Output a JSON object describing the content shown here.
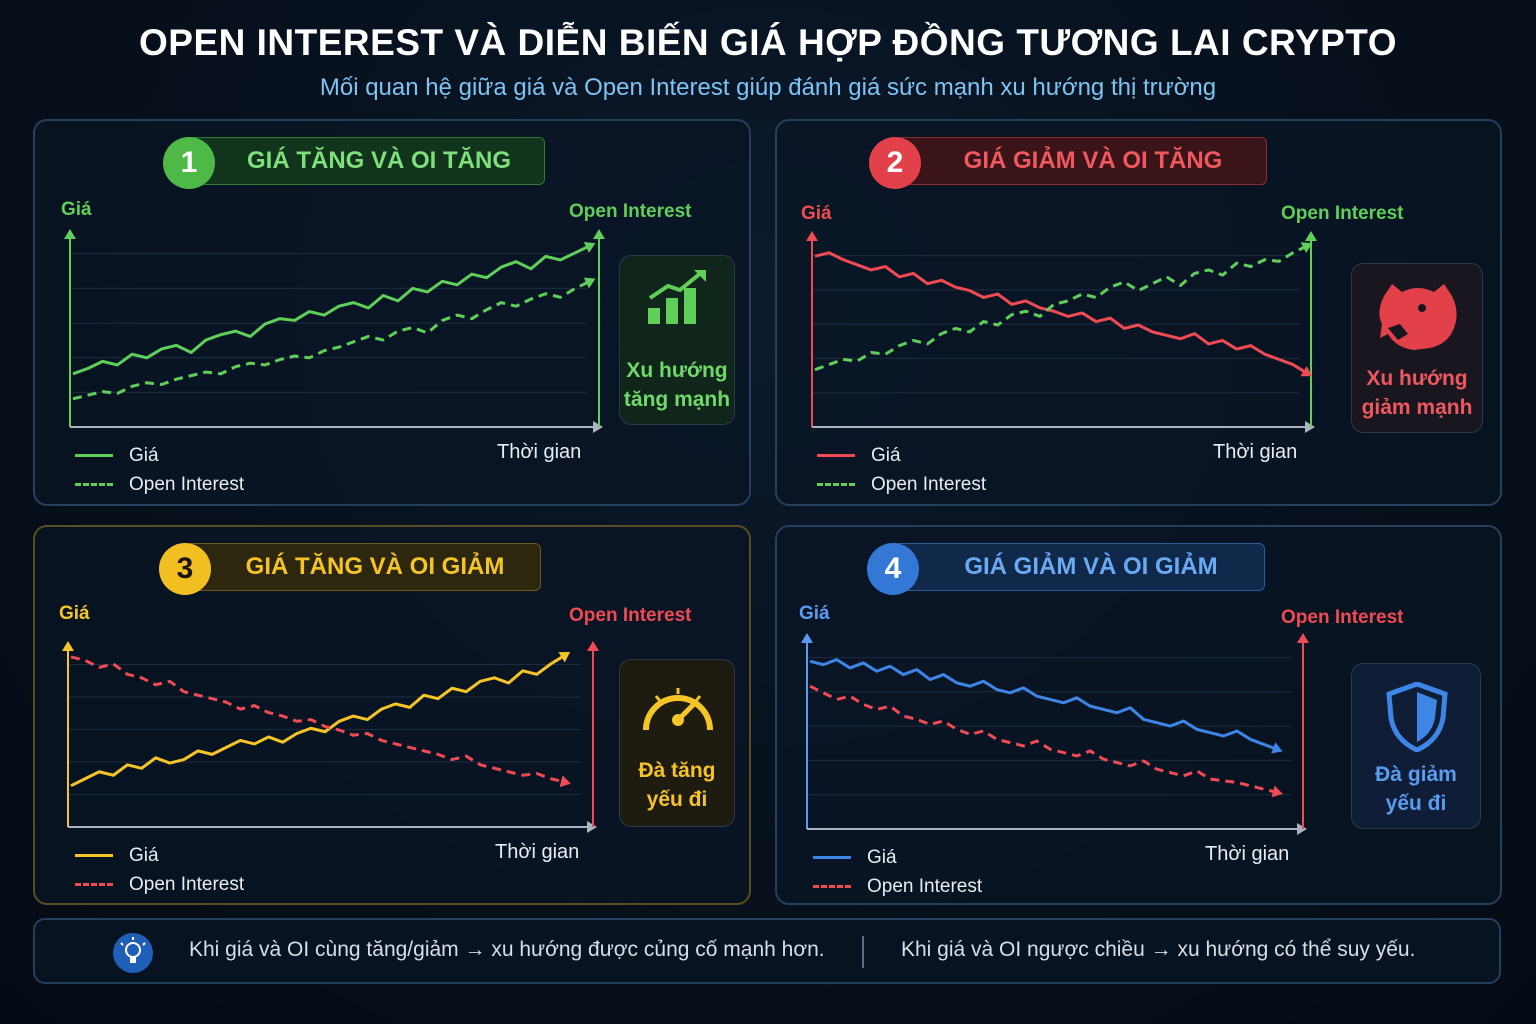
{
  "title": "OPEN INTEREST VÀ DIỄN BIẾN GIÁ HỢP ĐỒNG TƯƠNG LAI CRYPTO",
  "subtitle": "Mối quan hệ giữa giá và Open Interest giúp đánh giá sức mạnh xu hướng thị trường",
  "colors": {
    "green": "#5fcf5a",
    "red": "#f04b53",
    "yellow": "#f5c427",
    "blue": "#3d86e6"
  },
  "chart_data": [
    {
      "type": "line",
      "number": "1",
      "heading": "GIÁ TĂNG VÀ OI TĂNG",
      "ylabel": "Giá",
      "y2label": "Open Interest",
      "xlabel": "Thời gian",
      "series": [
        {
          "name": "Giá",
          "style": "solid",
          "color": "#5fcf5a",
          "values": [
            22,
            25,
            29,
            27,
            33,
            31,
            36,
            38,
            34,
            41,
            44,
            46,
            43,
            50,
            53,
            52,
            57,
            55,
            60,
            62,
            59,
            66,
            63,
            70,
            68,
            74,
            72,
            78,
            76,
            82,
            85,
            81,
            88,
            86,
            90,
            94
          ]
        },
        {
          "name": "Open Interest",
          "style": "dashed",
          "color": "#5fcf5a",
          "values": [
            8,
            10,
            12,
            11,
            15,
            17,
            16,
            19,
            21,
            23,
            22,
            26,
            28,
            27,
            30,
            32,
            31,
            35,
            37,
            40,
            43,
            41,
            46,
            48,
            45,
            52,
            55,
            53,
            58,
            62,
            60,
            64,
            67,
            65,
            70,
            74
          ]
        }
      ],
      "insight": [
        "Xu hướng",
        "tăng mạnh"
      ],
      "icon": "bar-chart-up-icon"
    },
    {
      "type": "line",
      "number": "2",
      "heading": "GIÁ GIẢM VÀ OI TĂNG",
      "ylabel": "Giá",
      "y2label": "Open Interest",
      "xlabel": "Thời gian",
      "series": [
        {
          "name": "Giá",
          "style": "solid",
          "color": "#f04b53",
          "values": [
            90,
            92,
            88,
            85,
            82,
            84,
            78,
            80,
            74,
            76,
            72,
            70,
            66,
            68,
            62,
            64,
            60,
            58,
            55,
            57,
            52,
            54,
            48,
            50,
            46,
            44,
            42,
            45,
            39,
            41,
            36,
            38,
            33,
            30,
            27,
            22
          ]
        },
        {
          "name": "Open Interest",
          "style": "dashed",
          "color": "#5fcf5a",
          "values": [
            24,
            27,
            30,
            29,
            34,
            33,
            38,
            41,
            39,
            45,
            48,
            46,
            52,
            50,
            56,
            58,
            55,
            62,
            64,
            68,
            66,
            72,
            75,
            70,
            74,
            78,
            73,
            80,
            82,
            79,
            86,
            84,
            88,
            87,
            92,
            96
          ]
        }
      ],
      "insight": [
        "Xu hướng",
        "giảm mạnh"
      ],
      "icon": "bear-icon"
    },
    {
      "type": "line",
      "number": "3",
      "heading": "GIÁ TĂNG VÀ OI GIẢM",
      "ylabel": "Giá",
      "y2label": "Open Interest",
      "xlabel": "Thời gian",
      "series": [
        {
          "name": "Giá",
          "style": "solid",
          "color": "#f5c427",
          "values": [
            18,
            22,
            26,
            24,
            30,
            28,
            34,
            31,
            33,
            38,
            36,
            40,
            44,
            42,
            46,
            43,
            48,
            51,
            49,
            55,
            58,
            56,
            62,
            65,
            63,
            70,
            68,
            74,
            72,
            78,
            80,
            77,
            84,
            82,
            88,
            93
          ]
        },
        {
          "name": "Open Interest",
          "style": "dashed",
          "color": "#f04b53",
          "values": [
            92,
            90,
            86,
            88,
            82,
            80,
            76,
            78,
            72,
            70,
            68,
            66,
            62,
            64,
            60,
            58,
            55,
            56,
            52,
            50,
            47,
            48,
            44,
            42,
            40,
            38,
            36,
            33,
            35,
            30,
            28,
            26,
            24,
            25,
            22,
            20
          ]
        }
      ],
      "insight": [
        "Đà tăng",
        "yếu đi"
      ],
      "icon": "speedometer-icon"
    },
    {
      "type": "line",
      "number": "4",
      "heading": "GIÁ GIẢM VÀ OI GIẢM",
      "ylabel": "Giá",
      "y2label": "Open Interest",
      "xlabel": "Thời gian",
      "series": [
        {
          "name": "Giá",
          "style": "solid",
          "color": "#3d86e6",
          "values": [
            95,
            93,
            96,
            91,
            94,
            89,
            92,
            87,
            90,
            84,
            87,
            82,
            80,
            83,
            78,
            76,
            79,
            74,
            72,
            70,
            73,
            68,
            66,
            64,
            67,
            60,
            58,
            56,
            59,
            54,
            52,
            50,
            53,
            48,
            45,
            42
          ]
        },
        {
          "name": "Open Interest",
          "style": "dashed",
          "color": "#f04b53",
          "values": [
            80,
            76,
            72,
            74,
            69,
            66,
            68,
            62,
            60,
            57,
            59,
            54,
            51,
            53,
            48,
            46,
            44,
            47,
            42,
            40,
            38,
            41,
            36,
            34,
            32,
            35,
            30,
            28,
            26,
            29,
            24,
            23,
            22,
            20,
            18,
            16
          ]
        }
      ],
      "insight": [
        "Đà giảm",
        "yếu đi"
      ],
      "icon": "shield-icon"
    }
  ],
  "footer": {
    "tip_left": "Khi giá và OI cùng tăng/giảm → xu hướng được củng cố mạnh hơn.",
    "tip_right": "Khi giá và OI ngược chiều → xu hướng có thể suy yếu.",
    "icon": "lightbulb-icon"
  }
}
